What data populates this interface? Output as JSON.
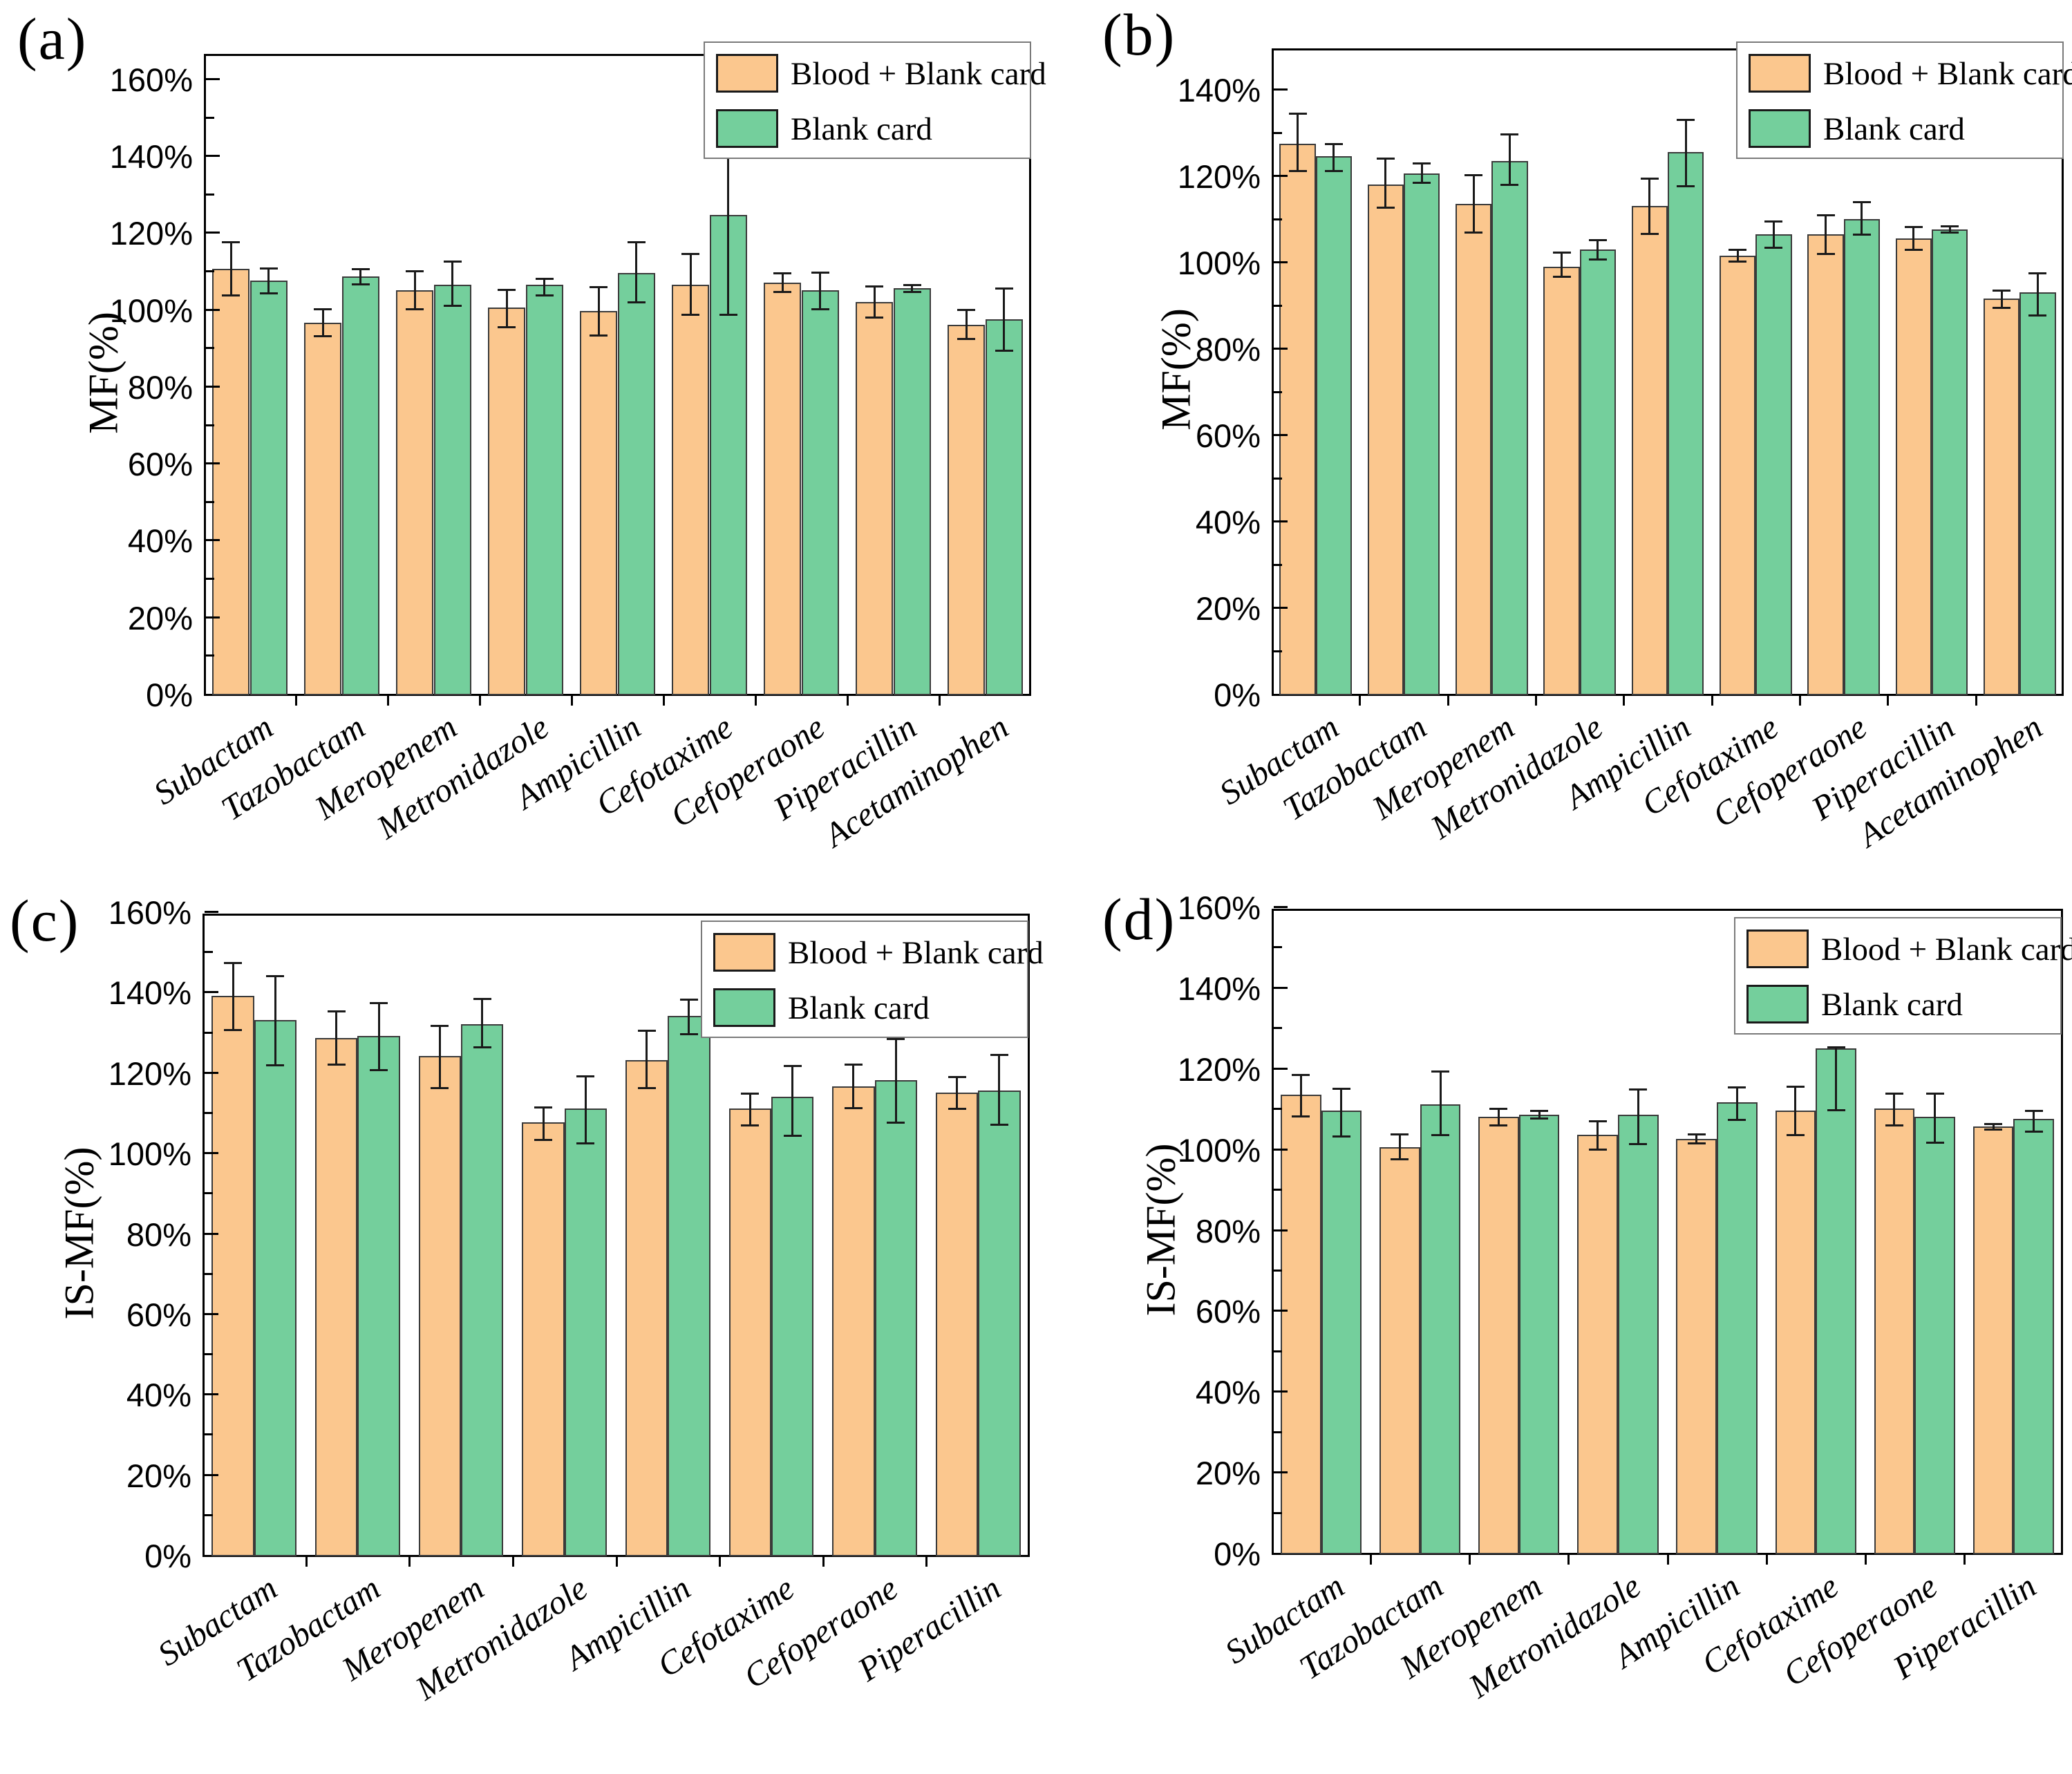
{
  "figure": {
    "panel_labels": [
      "(a)",
      "(b)",
      "(c)",
      "(d)"
    ],
    "legend": {
      "series1_label": "Blood + Blank card",
      "series2_label": "Blank card"
    }
  },
  "colors": {
    "series1": "#FBC78E",
    "series2": "#74CF9C",
    "bar_border": "#3a3a3a",
    "error_bar": "#1a1a1a",
    "frame": "#000000",
    "legend_border": "#7a7a7a",
    "background": "#ffffff"
  },
  "chart_data": [
    {
      "id": "a",
      "label": "(a)",
      "type": "bar",
      "title": "",
      "xlabel": "",
      "ylabel": "MF(%)",
      "ylim": [
        0,
        167
      ],
      "yticks": [
        0,
        20,
        40,
        60,
        80,
        100,
        120,
        140,
        160
      ],
      "ytick_suffix": "%",
      "grid": false,
      "legend_position": "top-right",
      "categories": [
        "Subactam",
        "Tazobactam",
        "Meropenem",
        "Metronidazole",
        "Ampicillin",
        "Cefotaxime",
        "Cefoperaone",
        "Piperacillin",
        "Acetaminophen"
      ],
      "series": [
        {
          "name": "Blood + Blank card",
          "values": [
            110.5,
            96.5,
            105,
            100.5,
            99.5,
            106.5,
            107,
            102,
            96
          ],
          "err_plus": [
            7,
            3.6,
            5,
            4.7,
            6.3,
            8,
            2.5,
            4,
            4
          ],
          "err_minus": [
            7,
            3.5,
            5.1,
            5.2,
            6.3,
            8,
            2.5,
            4.2,
            3.8
          ]
        },
        {
          "name": "Blank card",
          "values": [
            107.5,
            108.5,
            106.5,
            106.5,
            109.5,
            124.5,
            105,
            105.5,
            97.5
          ],
          "err_plus": [
            3.2,
            2,
            6,
            1.5,
            8,
            25,
            4.7,
            1,
            8
          ],
          "err_minus": [
            3.4,
            2.1,
            5.6,
            3,
            7.8,
            26,
            5,
            1,
            8.3
          ]
        }
      ]
    },
    {
      "id": "b",
      "label": "(b)",
      "type": "bar",
      "title": "",
      "xlabel": "",
      "ylabel": "MF(%)",
      "ylim": [
        0,
        150
      ],
      "yticks": [
        0,
        20,
        40,
        60,
        80,
        100,
        120,
        140
      ],
      "ytick_suffix": "%",
      "grid": false,
      "legend_position": "top-right",
      "categories": [
        "Subactam",
        "Tazobactam",
        "Meropenem",
        "Metronidazole",
        "Ampicillin",
        "Cefotaxime",
        "Cefoperaone",
        "Piperacillin",
        "Acetaminophen"
      ],
      "series": [
        {
          "name": "Blood + Blank card",
          "values": [
            127.5,
            118,
            113.5,
            99,
            113,
            101.5,
            106.5,
            105.5,
            91.5
          ],
          "err_plus": [
            7,
            6,
            6.8,
            3.3,
            6.5,
            1.5,
            4.5,
            2.7,
            2
          ],
          "err_minus": [
            6.5,
            5.5,
            6.7,
            2.5,
            6.5,
            1.5,
            4.7,
            2.7,
            2.2
          ]
        },
        {
          "name": "Blank card",
          "values": [
            124.5,
            120.5,
            123.5,
            103,
            125.5,
            106.5,
            110,
            107.5,
            93
          ],
          "err_plus": [
            3,
            2.4,
            6.1,
            2.2,
            7.5,
            3,
            4,
            0.8,
            4.5
          ],
          "err_minus": [
            3.4,
            2.2,
            5.6,
            2.5,
            8,
            3.2,
            3.7,
            0.8,
            5.5
          ]
        }
      ]
    },
    {
      "id": "c",
      "label": "(c)",
      "type": "bar",
      "title": "",
      "xlabel": "",
      "ylabel": "IS-MF(%)",
      "ylim": [
        0,
        160
      ],
      "yticks": [
        0,
        20,
        40,
        60,
        80,
        100,
        120,
        140,
        160
      ],
      "ytick_suffix": "%",
      "grid": false,
      "legend_position": "top-right",
      "categories": [
        "Subactam",
        "Tazobactam",
        "Meropenem",
        "Metronidazole",
        "Ampicillin",
        "Cefotaxime",
        "Cefoperaone",
        "Piperacillin"
      ],
      "series": [
        {
          "name": "Blood + Blank card",
          "values": [
            139,
            128.5,
            124,
            107.5,
            123,
            111,
            116.5,
            115
          ],
          "err_plus": [
            8.3,
            6.8,
            7.7,
            3.9,
            7.5,
            3.8,
            5.5,
            4
          ],
          "err_minus": [
            8.5,
            6.6,
            8,
            4.4,
            7,
            4.2,
            5.5,
            4.1
          ]
        },
        {
          "name": "Blank card",
          "values": [
            133,
            129,
            132,
            111,
            134,
            114,
            118,
            115.5
          ],
          "err_plus": [
            11,
            8.4,
            6.3,
            8.1,
            4.2,
            7.7,
            10.3,
            8.9
          ],
          "err_minus": [
            11.3,
            8.5,
            5.9,
            8.7,
            4.6,
            9.8,
            10.6,
            8.6
          ]
        }
      ]
    },
    {
      "id": "d",
      "label": "(d)",
      "type": "bar",
      "title": "",
      "xlabel": "",
      "ylabel": "IS-MF(%)",
      "ylim": [
        0,
        160
      ],
      "yticks": [
        0,
        20,
        40,
        60,
        80,
        100,
        120,
        140,
        160
      ],
      "ytick_suffix": "%",
      "grid": false,
      "legend_position": "top-right",
      "categories": [
        "Subactam",
        "Tazobactam",
        "Meropenem",
        "Metronidazole",
        "Ampicillin",
        "Cefotaxime",
        "Cefoperaone",
        "Piperacillin"
      ],
      "series": [
        {
          "name": "Blood + Blank card",
          "values": [
            113.5,
            100.5,
            108,
            103.5,
            102.5,
            109.5,
            110,
            105.5
          ],
          "err_plus": [
            5,
            3.2,
            2,
            3.4,
            1.2,
            6,
            3.8,
            0.8
          ],
          "err_minus": [
            5.5,
            3.2,
            2.2,
            3.7,
            1.2,
            6.2,
            4.2,
            0.8
          ]
        },
        {
          "name": "Blank card",
          "values": [
            109.5,
            111,
            108.5,
            108.5,
            111.5,
            125,
            108,
            107.5
          ],
          "err_plus": [
            5.5,
            8.3,
            1,
            6.4,
            3.9,
            0.3,
            5.8,
            2
          ],
          "err_minus": [
            6.5,
            7.7,
            1,
            7.4,
            4.4,
            15.5,
            6.5,
            3.3
          ]
        }
      ]
    }
  ]
}
